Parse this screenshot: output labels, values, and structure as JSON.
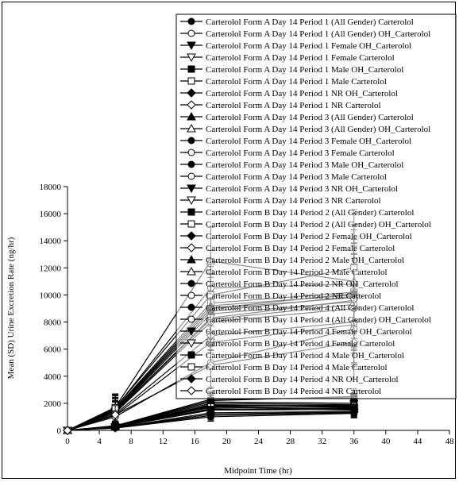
{
  "chart_data": {
    "type": "line",
    "xlabel": "Midpoint Time (hr)",
    "ylabel": "Mean (SD) Urine Excretion Rate (ng/hr)",
    "xlim": [
      0,
      48
    ],
    "ylim": [
      0,
      18000
    ],
    "xticks": [
      0,
      4,
      8,
      12,
      16,
      20,
      24,
      28,
      32,
      36,
      40,
      44,
      48
    ],
    "yticks": [
      0,
      2000,
      4000,
      6000,
      8000,
      10000,
      12000,
      14000,
      16000,
      18000
    ],
    "grid": false,
    "legend_position": "top-right",
    "x": [
      0,
      6,
      18,
      36
    ],
    "series": [
      {
        "name": "Carterolol Form A  Day 14  Period 1 (All Gender) Carterolol",
        "marker": "circle-filled",
        "line": "solid",
        "values": [
          0,
          1500,
          9000,
          9800
        ],
        "sd": [
          0,
          900,
          2600,
          3800
        ]
      },
      {
        "name": "Carterolol Form A  Day 14  Period 1 (All Gender) OH_Carterolol",
        "marker": "circle-open",
        "line": "solid",
        "values": [
          0,
          300,
          1800,
          1700
        ],
        "sd": [
          0,
          150,
          500,
          500
        ]
      },
      {
        "name": "Carterolol Form A  Day 14  Period 1  Female  OH_Carterolol",
        "marker": "triangle-down-filled",
        "line": "solid",
        "values": [
          0,
          250,
          1600,
          1500
        ],
        "sd": [
          0,
          120,
          450,
          450
        ]
      },
      {
        "name": "Carterolol Form A  Day 14  Period 1  Female  Carterolol",
        "marker": "triangle-down-open",
        "line": "solid",
        "values": [
          0,
          1400,
          8600,
          9500
        ],
        "sd": [
          0,
          800,
          2400,
          3500
        ]
      },
      {
        "name": "Carterolol Form A  Day 14  Period 1  Male  OH_Carterolol",
        "marker": "square-filled",
        "line": "solid",
        "values": [
          0,
          320,
          2000,
          1900
        ],
        "sd": [
          0,
          160,
          550,
          550
        ]
      },
      {
        "name": "Carterolol Form A  Day 14  Period 1  Male  Carterolol",
        "marker": "square-open",
        "line": "solid",
        "values": [
          0,
          1600,
          9400,
          10200
        ],
        "sd": [
          0,
          950,
          2700,
          3900
        ]
      },
      {
        "name": "Carterolol Form A  Day 14  Period 1  NR  OH_Carterolol",
        "marker": "diamond-filled",
        "line": "solid",
        "values": [
          0,
          200,
          1300,
          1400
        ],
        "sd": [
          0,
          100,
          400,
          400
        ]
      },
      {
        "name": "Carterolol Form A  Day 14  Period 1  NR  Carterolol",
        "marker": "diamond-open",
        "line": "solid",
        "values": [
          0,
          1200,
          7000,
          8000
        ],
        "sd": [
          0,
          700,
          2000,
          3000
        ]
      },
      {
        "name": "Carterolol Form A  Day 14  Period 3 (All Gender) Carterolol",
        "marker": "triangle-up-filled",
        "line": "solid",
        "values": [
          0,
          1550,
          9200,
          10000
        ],
        "sd": [
          0,
          900,
          2600,
          3800
        ]
      },
      {
        "name": "Carterolol Form A  Day 14  Period 3 (All Gender) OH_Carterolol",
        "marker": "triangle-up-open",
        "line": "solid",
        "values": [
          0,
          310,
          1900,
          1800
        ],
        "sd": [
          0,
          150,
          500,
          500
        ]
      },
      {
        "name": "Carterolol Form A  Day 14  Period 3  Female  OH_Carterolol",
        "marker": "circle-filled",
        "line": "solid",
        "values": [
          0,
          260,
          1700,
          1600
        ],
        "sd": [
          0,
          130,
          450,
          450
        ]
      },
      {
        "name": "Carterolol Form A  Day 14  Period 3  Female  Carterolol",
        "marker": "circle-open",
        "line": "solid",
        "values": [
          0,
          1350,
          8200,
          9300
        ],
        "sd": [
          0,
          800,
          2300,
          3400
        ]
      },
      {
        "name": "Carterolol Form A  Day 14  Period 3  Male  OH_Carterolol",
        "marker": "circle-filled",
        "line": "solid",
        "values": [
          0,
          340,
          2100,
          2000
        ],
        "sd": [
          0,
          170,
          550,
          550
        ]
      },
      {
        "name": "Carterolol Form A  Day 14  Period 3  Male  Carterolol",
        "marker": "circle-open",
        "line": "solid",
        "values": [
          0,
          1650,
          10500,
          10800
        ],
        "sd": [
          0,
          950,
          2800,
          4000
        ]
      },
      {
        "name": "Carterolol Form A  Day 14  Period 3  NR  OH_Carterolol",
        "marker": "triangle-down-filled",
        "line": "solid",
        "values": [
          0,
          180,
          1100,
          1300
        ],
        "sd": [
          0,
          90,
          350,
          350
        ]
      },
      {
        "name": "Carterolol Form A  Day 14  Period 3  NR  Carterolol",
        "marker": "triangle-down-open",
        "line": "solid",
        "values": [
          0,
          1100,
          6500,
          7800
        ],
        "sd": [
          0,
          650,
          1900,
          2900
        ]
      },
      {
        "name": "Carterolol Form B  Day 14  Period 2 (All Gender) Carterolol",
        "marker": "square-filled",
        "line": "solid",
        "values": [
          0,
          1450,
          8800,
          9900
        ],
        "sd": [
          0,
          850,
          2500,
          3700
        ]
      },
      {
        "name": "Carterolol Form B  Day 14  Period 2 (All Gender) OH_Carterolol",
        "marker": "square-open",
        "line": "solid",
        "values": [
          0,
          290,
          1750,
          1750
        ],
        "sd": [
          0,
          150,
          500,
          500
        ]
      },
      {
        "name": "Carterolol Form B  Day 14  Period 2  Female  OH_Carterolol",
        "marker": "diamond-filled",
        "line": "solid",
        "values": [
          0,
          240,
          1500,
          1550
        ],
        "sd": [
          0,
          120,
          430,
          430
        ]
      },
      {
        "name": "Carterolol Form B  Day 14  Period 2  Female  Carterolol",
        "marker": "diamond-open",
        "line": "solid",
        "values": [
          0,
          1300,
          8000,
          9000
        ],
        "sd": [
          0,
          780,
          2300,
          3300
        ]
      },
      {
        "name": "Carterolol Form B  Day 14  Period 2  Male  OH_Carterolol",
        "marker": "triangle-up-filled",
        "line": "solid",
        "values": [
          0,
          330,
          2300,
          2400
        ],
        "sd": [
          0,
          165,
          560,
          560
        ]
      },
      {
        "name": "Carterolol Form B  Day 14  Period 2  Male  Carterolol",
        "marker": "triangle-up-open",
        "line": "solid",
        "values": [
          0,
          1700,
          12500,
          11000
        ],
        "sd": [
          0,
          1000,
          2500,
          4200
        ]
      },
      {
        "name": "Carterolol Form B  Day 14  Period 2  NR  OH_Carterolol",
        "marker": "circle-filled",
        "line": "solid",
        "values": [
          0,
          170,
          1000,
          1250
        ],
        "sd": [
          0,
          85,
          330,
          330
        ]
      },
      {
        "name": "Carterolol Form B  Day 14  Period 2  NR  Carterolol",
        "marker": "circle-open",
        "line": "solid",
        "values": [
          0,
          1000,
          5000,
          7500
        ],
        "sd": [
          0,
          600,
          1800,
          2800
        ]
      },
      {
        "name": "Carterolol Form B  Day 14  Period 4 (All Gender) Carterolol",
        "marker": "circle-filled",
        "line": "solid",
        "values": [
          0,
          1500,
          9000,
          10100
        ],
        "sd": [
          0,
          880,
          2550,
          3750
        ]
      },
      {
        "name": "Carterolol Form B  Day 14  Period 4 (All Gender) OH_Carterolol",
        "marker": "circle-open",
        "line": "solid",
        "values": [
          0,
          300,
          1850,
          1850
        ],
        "sd": [
          0,
          150,
          500,
          500
        ]
      },
      {
        "name": "Carterolol Form B  Day 14  Period 4  Female  OH_Carterolol",
        "marker": "triangle-down-filled",
        "line": "solid",
        "values": [
          0,
          250,
          1550,
          1650
        ],
        "sd": [
          0,
          125,
          440,
          440
        ]
      },
      {
        "name": "Carterolol Form B  Day 14  Period 4  Female  Carterolol",
        "marker": "triangle-down-open",
        "line": "solid",
        "values": [
          0,
          1350,
          8300,
          9600
        ],
        "sd": [
          0,
          790,
          2350,
          3450
        ]
      },
      {
        "name": "Carterolol Form B  Day 14  Period 4  Male  OH_Carterolol",
        "marker": "square-filled",
        "line": "solid",
        "values": [
          0,
          345,
          2200,
          2500
        ],
        "sd": [
          0,
          170,
          560,
          560
        ]
      },
      {
        "name": "Carterolol Form B  Day 14  Period 4  Male  Carterolol",
        "marker": "square-open",
        "line": "solid",
        "values": [
          0,
          1680,
          10000,
          12000
        ],
        "sd": [
          0,
          980,
          2700,
          4300
        ]
      },
      {
        "name": "Carterolol Form B  Day 14  Period 4  NR  OH_Carterolol",
        "marker": "diamond-filled",
        "line": "solid",
        "values": [
          0,
          190,
          1200,
          1350
        ],
        "sd": [
          0,
          95,
          360,
          360
        ]
      },
      {
        "name": "Carterolol Form B  Day 14  Period 4  NR  Carterolol",
        "marker": "diamond-open",
        "line": "solid",
        "values": [
          0,
          1150,
          4800,
          6500
        ],
        "sd": [
          0,
          680,
          1700,
          2700
        ]
      }
    ]
  }
}
